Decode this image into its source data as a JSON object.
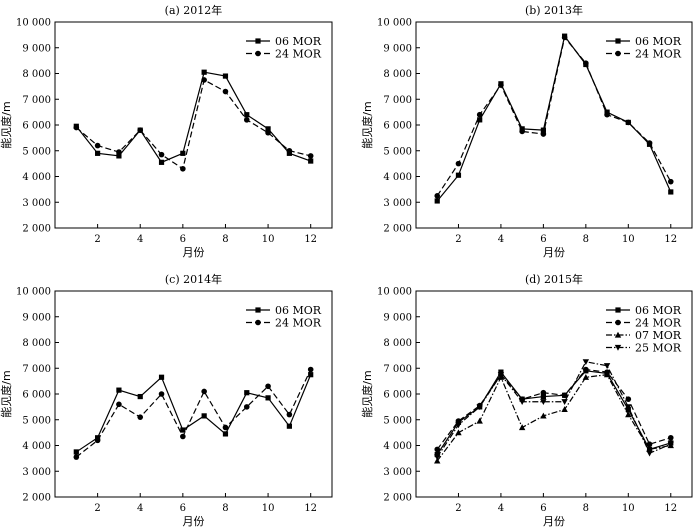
{
  "chart_data": [
    {
      "type": "line",
      "title": "(a) 2012年",
      "xlabel": "月份",
      "ylabel": "能见度/m",
      "xlim": [
        0,
        13
      ],
      "ylim": [
        2000,
        10000
      ],
      "xticks": [
        2,
        4,
        6,
        8,
        10,
        12
      ],
      "yticks": [
        2000,
        3000,
        4000,
        5000,
        6000,
        7000,
        8000,
        9000,
        10000
      ],
      "ytick_labels": [
        "2 000",
        "3 000",
        "4 000",
        "5 000",
        "6 000",
        "7 000",
        "8 000",
        "9 000",
        "10 000"
      ],
      "x": [
        1,
        2,
        3,
        4,
        5,
        6,
        7,
        8,
        9,
        10,
        11,
        12
      ],
      "legend_position": "top-right",
      "series": [
        {
          "name": "06 MOR",
          "marker": "square",
          "dash": "solid",
          "values": [
            5950,
            4900,
            4800,
            5800,
            4550,
            4900,
            8050,
            7900,
            6400,
            5850,
            4900,
            4600
          ]
        },
        {
          "name": "24 MOR",
          "marker": "circle",
          "dash": "dashed",
          "values": [
            5900,
            5200,
            4950,
            5800,
            4850,
            4300,
            7750,
            7300,
            6200,
            5700,
            5000,
            4800
          ]
        }
      ]
    },
    {
      "type": "line",
      "title": "(b) 2013年",
      "xlabel": "月份",
      "ylabel": "能见度/m",
      "xlim": [
        0,
        13
      ],
      "ylim": [
        2000,
        10000
      ],
      "xticks": [
        2,
        4,
        6,
        8,
        10,
        12
      ],
      "yticks": [
        2000,
        3000,
        4000,
        5000,
        6000,
        7000,
        8000,
        9000,
        10000
      ],
      "ytick_labels": [
        "2 000",
        "3 000",
        "4 000",
        "5 000",
        "6 000",
        "7 000",
        "8 000",
        "9 000",
        "10 000"
      ],
      "x": [
        1,
        2,
        3,
        4,
        5,
        6,
        7,
        8,
        9,
        10,
        11,
        12
      ],
      "legend_position": "top-right",
      "series": [
        {
          "name": "06 MOR",
          "marker": "square",
          "dash": "solid",
          "values": [
            3050,
            4050,
            6200,
            7600,
            5850,
            5800,
            9450,
            8350,
            6500,
            6100,
            5250,
            3400
          ]
        },
        {
          "name": "24 MOR",
          "marker": "circle",
          "dash": "dashed",
          "values": [
            3250,
            4500,
            6400,
            7550,
            5750,
            5650,
            9400,
            8400,
            6400,
            6100,
            5300,
            3800
          ]
        }
      ]
    },
    {
      "type": "line",
      "title": "(c) 2014年",
      "xlabel": "月份",
      "ylabel": "能见度/m",
      "xlim": [
        0,
        13
      ],
      "ylim": [
        2000,
        10000
      ],
      "xticks": [
        2,
        4,
        6,
        8,
        10,
        12
      ],
      "yticks": [
        2000,
        3000,
        4000,
        5000,
        6000,
        7000,
        8000,
        9000,
        10000
      ],
      "ytick_labels": [
        "2 000",
        "3 000",
        "4 000",
        "5 000",
        "6 000",
        "7 000",
        "8 000",
        "9 000",
        "10 000"
      ],
      "x": [
        1,
        2,
        3,
        4,
        5,
        6,
        7,
        8,
        9,
        10,
        11,
        12
      ],
      "legend_position": "top-right",
      "series": [
        {
          "name": "06 MOR",
          "marker": "square",
          "dash": "solid",
          "values": [
            3750,
            4300,
            6150,
            5900,
            6650,
            4600,
            5150,
            4450,
            6050,
            5850,
            4750,
            6750
          ]
        },
        {
          "name": "24 MOR",
          "marker": "circle",
          "dash": "dashed",
          "values": [
            3550,
            4200,
            5600,
            5100,
            6000,
            4350,
            6100,
            4700,
            5500,
            6300,
            5200,
            6950
          ]
        }
      ]
    },
    {
      "type": "line",
      "title": "(d) 2015年",
      "xlabel": "月份",
      "ylabel": "能见度/m",
      "xlim": [
        0,
        13
      ],
      "ylim": [
        2000,
        10000
      ],
      "xticks": [
        2,
        4,
        6,
        8,
        10,
        12
      ],
      "yticks": [
        2000,
        3000,
        4000,
        5000,
        6000,
        7000,
        8000,
        9000,
        10000
      ],
      "ytick_labels": [
        "2 000",
        "3 000",
        "4 000",
        "5 000",
        "6 000",
        "7 000",
        "8 000",
        "9 000",
        "10 000"
      ],
      "x": [
        1,
        2,
        3,
        4,
        5,
        6,
        7,
        8,
        9,
        10,
        11,
        12
      ],
      "legend_position": "top-right",
      "series": [
        {
          "name": "06 MOR",
          "marker": "square",
          "dash": "solid",
          "values": [
            3650,
            4900,
            5500,
            6850,
            5800,
            5900,
            5950,
            6900,
            6800,
            5400,
            3850,
            4100
          ]
        },
        {
          "name": "24 MOR",
          "marker": "circle",
          "dash": "dashed",
          "values": [
            3850,
            4950,
            5550,
            6750,
            5800,
            6050,
            5950,
            6950,
            6850,
            5800,
            4050,
            4300
          ]
        },
        {
          "name": "07 MOR",
          "marker": "triangle-up",
          "dash": "dashdot",
          "values": [
            3400,
            4500,
            4950,
            6650,
            4700,
            5150,
            5400,
            6650,
            6750,
            5200,
            3850,
            4000
          ]
        },
        {
          "name": "25 MOR",
          "marker": "triangle-down",
          "dash": "dashdot",
          "values": [
            3550,
            4800,
            5500,
            6750,
            5700,
            5700,
            5700,
            7250,
            7100,
            5500,
            3700,
            4050
          ]
        }
      ]
    }
  ]
}
